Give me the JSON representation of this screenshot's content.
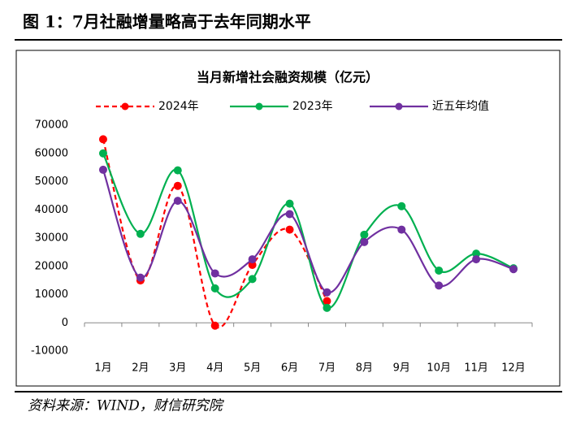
{
  "header": {
    "title": "图 1：7月社融增量略高于去年同期水平"
  },
  "chart_data": {
    "type": "line",
    "title": "当月新增社会融资规模（亿元）",
    "categories": [
      "1月",
      "2月",
      "3月",
      "4月",
      "5月",
      "6月",
      "7月",
      "8月",
      "9月",
      "10月",
      "11月",
      "12月"
    ],
    "series": [
      {
        "name": "2024年",
        "color": "#ff0000",
        "dashed": true,
        "values": [
          65000,
          15000,
          48500,
          -1000,
          20500,
          33000,
          7700,
          null,
          null,
          null,
          null,
          null
        ]
      },
      {
        "name": "2023年",
        "color": "#00b050",
        "values": [
          60000,
          31500,
          54000,
          12200,
          15500,
          42200,
          5300,
          31200,
          41300,
          18500,
          24500,
          19300
        ]
      },
      {
        "name": "近五年均值",
        "color": "#7030a0",
        "values": [
          54200,
          16000,
          43200,
          17500,
          22500,
          38500,
          10800,
          28600,
          33000,
          13200,
          22500,
          19000
        ]
      }
    ],
    "ylim": [
      -10000,
      70000
    ],
    "yticks": [
      -10000,
      0,
      10000,
      20000,
      30000,
      40000,
      50000,
      60000,
      70000
    ],
    "smooth": true,
    "legend": "top"
  },
  "footer": {
    "source": "资料来源：WIND，财信研究院"
  }
}
